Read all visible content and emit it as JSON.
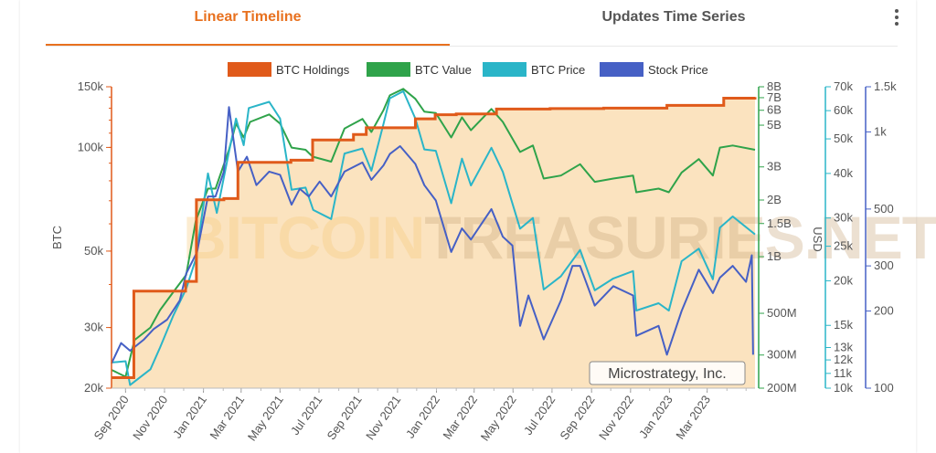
{
  "tabs": [
    {
      "label": "Linear Timeline",
      "active": true
    },
    {
      "label": "Updates Time Series",
      "active": false
    }
  ],
  "menu_icon": "more-vertical-icon",
  "watermark": {
    "part1": "BITCOIN",
    "part2": "TREASURIES.NET"
  },
  "company_label": "Microstrategy, Inc.",
  "colors": {
    "btc_holdings": "#e05a1a",
    "btc_value": "#2fa34a",
    "btc_price": "#2ab5c8",
    "stock_price": "#4660c5",
    "fill": "#fbe3bf",
    "tab_active": "#e8711f"
  },
  "chart_data": {
    "type": "line",
    "title": "",
    "legend_position": "top-center",
    "grid": false,
    "x_ticks": [
      "Sep 2020",
      "Nov 2020",
      "Jan 2021",
      "Mar 2021",
      "May 2021",
      "Jul 2021",
      "Sep 2021",
      "Nov 2021",
      "Jan 2022",
      "Mar 2022",
      "May 2022",
      "Jul 2022",
      "Sep 2022",
      "Nov 2022",
      "Jan 2023",
      "Mar 2023"
    ],
    "x_range": [
      "2020-08-10",
      "2023-05-15"
    ],
    "axes": {
      "btc": {
        "label": "BTC",
        "scale": "log",
        "range": [
          20000,
          150000
        ],
        "ticks": [
          {
            "v": 20000,
            "t": "20k"
          },
          {
            "v": 30000,
            "t": "30k"
          },
          {
            "v": 50000,
            "t": "50k"
          },
          {
            "v": 100000,
            "t": "100k"
          },
          {
            "v": 150000,
            "t": "150k"
          }
        ]
      },
      "value_usd": {
        "label": "USD",
        "scale": "log",
        "range": [
          200000000,
          8000000000
        ],
        "ticks": [
          {
            "v": 200000000,
            "t": "200M"
          },
          {
            "v": 300000000,
            "t": "300M"
          },
          {
            "v": 500000000,
            "t": "500M"
          },
          {
            "v": 1000000000,
            "t": "1B"
          },
          {
            "v": 1500000000,
            "t": "1.5B"
          },
          {
            "v": 2000000000,
            "t": "2B"
          },
          {
            "v": 3000000000,
            "t": "3B"
          },
          {
            "v": 5000000000,
            "t": "5B"
          },
          {
            "v": 6000000000,
            "t": "6B"
          },
          {
            "v": 7000000000,
            "t": "7B"
          },
          {
            "v": 8000000000,
            "t": "8B"
          }
        ]
      },
      "btc_price_usd": {
        "scale": "log",
        "range": [
          10000,
          70000
        ],
        "ticks": [
          {
            "v": 10000,
            "t": "10k"
          },
          {
            "v": 11000,
            "t": "11k"
          },
          {
            "v": 12000,
            "t": "12k"
          },
          {
            "v": 13000,
            "t": "13k"
          },
          {
            "v": 15000,
            "t": "15k"
          },
          {
            "v": 20000,
            "t": "20k"
          },
          {
            "v": 25000,
            "t": "25k"
          },
          {
            "v": 30000,
            "t": "30k"
          },
          {
            "v": 40000,
            "t": "40k"
          },
          {
            "v": 50000,
            "t": "50k"
          },
          {
            "v": 60000,
            "t": "60k"
          },
          {
            "v": 70000,
            "t": "70k"
          }
        ]
      },
      "stock_price_usd": {
        "scale": "log",
        "range": [
          100,
          1500
        ],
        "ticks": [
          {
            "v": 100,
            "t": "100"
          },
          {
            "v": 200,
            "t": "200"
          },
          {
            "v": 300,
            "t": "300"
          },
          {
            "v": 500,
            "t": "500"
          },
          {
            "v": 1000,
            "t": "1k"
          },
          {
            "v": 1500,
            "t": "1.5k"
          }
        ]
      }
    },
    "series": [
      {
        "name": "BTC Holdings",
        "axis": "btc",
        "step": true,
        "points": [
          [
            "2020-08-10",
            21454
          ],
          [
            "2020-09-14",
            38250
          ],
          [
            "2020-12-04",
            40824
          ],
          [
            "2020-12-21",
            70470
          ],
          [
            "2021-02-02",
            71079
          ],
          [
            "2021-02-24",
            90531
          ],
          [
            "2021-05-18",
            91850
          ],
          [
            "2021-06-21",
            105085
          ],
          [
            "2021-08-24",
            108992
          ],
          [
            "2021-09-13",
            114042
          ],
          [
            "2021-11-29",
            121044
          ],
          [
            "2021-12-30",
            124391
          ],
          [
            "2022-02-01",
            125051
          ],
          [
            "2022-04-05",
            129218
          ],
          [
            "2022-06-28",
            129699
          ],
          [
            "2022-09-20",
            130000
          ],
          [
            "2022-12-28",
            132500
          ],
          [
            "2023-03-27",
            138955
          ],
          [
            "2023-05-15",
            140000
          ]
        ]
      },
      {
        "name": "BTC Value",
        "axis": "value_usd",
        "points": [
          [
            "2020-08-10",
            250000000
          ],
          [
            "2020-09-01",
            230000000
          ],
          [
            "2020-09-15",
            360000000
          ],
          [
            "2020-10-10",
            420000000
          ],
          [
            "2020-10-25",
            520000000
          ],
          [
            "2020-11-15",
            650000000
          ],
          [
            "2020-12-05",
            800000000
          ],
          [
            "2020-12-20",
            1550000000
          ],
          [
            "2021-01-08",
            2300000000
          ],
          [
            "2021-01-20",
            2300000000
          ],
          [
            "2021-02-10",
            3700000000
          ],
          [
            "2021-02-21",
            5100000000
          ],
          [
            "2021-03-05",
            4300000000
          ],
          [
            "2021-03-15",
            5200000000
          ],
          [
            "2021-04-14",
            5700000000
          ],
          [
            "2021-05-01",
            5100000000
          ],
          [
            "2021-05-19",
            3800000000
          ],
          [
            "2021-06-10",
            3700000000
          ],
          [
            "2021-06-21",
            3400000000
          ],
          [
            "2021-07-20",
            3200000000
          ],
          [
            "2021-08-10",
            4800000000
          ],
          [
            "2021-09-07",
            5400000000
          ],
          [
            "2021-09-21",
            4600000000
          ],
          [
            "2021-10-10",
            6000000000
          ],
          [
            "2021-10-20",
            7200000000
          ],
          [
            "2021-11-10",
            7800000000
          ],
          [
            "2021-11-29",
            6900000000
          ],
          [
            "2021-12-13",
            5900000000
          ],
          [
            "2021-12-31",
            5800000000
          ],
          [
            "2022-01-24",
            4300000000
          ],
          [
            "2022-02-10",
            5500000000
          ],
          [
            "2022-02-24",
            4700000000
          ],
          [
            "2022-03-28",
            6100000000
          ],
          [
            "2022-04-15",
            5200000000
          ],
          [
            "2022-05-12",
            3600000000
          ],
          [
            "2022-06-01",
            3900000000
          ],
          [
            "2022-06-18",
            2600000000
          ],
          [
            "2022-07-15",
            2700000000
          ],
          [
            "2022-08-14",
            3100000000
          ],
          [
            "2022-09-06",
            2500000000
          ],
          [
            "2022-10-05",
            2600000000
          ],
          [
            "2022-11-05",
            2700000000
          ],
          [
            "2022-11-10",
            2200000000
          ],
          [
            "2022-12-15",
            2300000000
          ],
          [
            "2022-12-31",
            2200000000
          ],
          [
            "2023-01-20",
            2800000000
          ],
          [
            "2023-02-16",
            3300000000
          ],
          [
            "2023-03-10",
            2700000000
          ],
          [
            "2023-03-21",
            3800000000
          ],
          [
            "2023-04-10",
            3900000000
          ],
          [
            "2023-05-15",
            3700000000
          ]
        ]
      },
      {
        "name": "BTC Price",
        "axis": "btc_price_usd",
        "points": [
          [
            "2020-08-10",
            11800
          ],
          [
            "2020-09-01",
            11900
          ],
          [
            "2020-09-08",
            10200
          ],
          [
            "2020-10-10",
            11300
          ],
          [
            "2020-10-25",
            13000
          ],
          [
            "2020-11-15",
            16000
          ],
          [
            "2020-12-05",
            19000
          ],
          [
            "2020-12-20",
            23000
          ],
          [
            "2021-01-08",
            40000
          ],
          [
            "2021-01-22",
            31000
          ],
          [
            "2021-02-10",
            46000
          ],
          [
            "2021-02-21",
            57000
          ],
          [
            "2021-03-05",
            48000
          ],
          [
            "2021-03-13",
            61000
          ],
          [
            "2021-04-14",
            63500
          ],
          [
            "2021-05-01",
            57000
          ],
          [
            "2021-05-19",
            36000
          ],
          [
            "2021-06-10",
            36500
          ],
          [
            "2021-06-22",
            31600
          ],
          [
            "2021-07-20",
            29800
          ],
          [
            "2021-08-10",
            45500
          ],
          [
            "2021-09-07",
            47000
          ],
          [
            "2021-09-21",
            40700
          ],
          [
            "2021-10-10",
            55000
          ],
          [
            "2021-10-20",
            65000
          ],
          [
            "2021-11-10",
            68000
          ],
          [
            "2021-11-29",
            57000
          ],
          [
            "2021-12-13",
            46700
          ],
          [
            "2021-12-31",
            46300
          ],
          [
            "2022-01-24",
            33000
          ],
          [
            "2022-02-10",
            44000
          ],
          [
            "2022-02-24",
            37000
          ],
          [
            "2022-03-28",
            47200
          ],
          [
            "2022-04-15",
            40400
          ],
          [
            "2022-05-12",
            28000
          ],
          [
            "2022-06-01",
            30000
          ],
          [
            "2022-06-18",
            18900
          ],
          [
            "2022-07-15",
            20600
          ],
          [
            "2022-08-14",
            24400
          ],
          [
            "2022-09-06",
            18800
          ],
          [
            "2022-10-05",
            20300
          ],
          [
            "2022-11-05",
            21300
          ],
          [
            "2022-11-10",
            16500
          ],
          [
            "2022-12-15",
            17300
          ],
          [
            "2022-12-31",
            16500
          ],
          [
            "2023-01-20",
            22700
          ],
          [
            "2023-02-16",
            24600
          ],
          [
            "2023-03-10",
            20200
          ],
          [
            "2023-03-21",
            28200
          ],
          [
            "2023-04-10",
            30300
          ],
          [
            "2023-05-15",
            27000
          ]
        ]
      },
      {
        "name": "Stock Price",
        "axis": "stock_price_usd",
        "points": [
          [
            "2020-08-10",
            125
          ],
          [
            "2020-08-25",
            150
          ],
          [
            "2020-09-08",
            140
          ],
          [
            "2020-09-30",
            155
          ],
          [
            "2020-10-15",
            170
          ],
          [
            "2020-11-05",
            185
          ],
          [
            "2020-11-25",
            220
          ],
          [
            "2020-12-05",
            280
          ],
          [
            "2020-12-22",
            340
          ],
          [
            "2021-01-08",
            560
          ],
          [
            "2021-01-20",
            560
          ],
          [
            "2021-02-02",
            700
          ],
          [
            "2021-02-10",
            1250
          ],
          [
            "2021-02-24",
            700
          ],
          [
            "2021-03-10",
            800
          ],
          [
            "2021-03-25",
            620
          ],
          [
            "2021-04-14",
            700
          ],
          [
            "2021-05-01",
            680
          ],
          [
            "2021-05-19",
            520
          ],
          [
            "2021-06-01",
            600
          ],
          [
            "2021-06-15",
            560
          ],
          [
            "2021-07-02",
            640
          ],
          [
            "2021-07-20",
            560
          ],
          [
            "2021-08-10",
            700
          ],
          [
            "2021-09-07",
            760
          ],
          [
            "2021-09-21",
            650
          ],
          [
            "2021-10-10",
            740
          ],
          [
            "2021-10-20",
            820
          ],
          [
            "2021-11-05",
            880
          ],
          [
            "2021-11-29",
            750
          ],
          [
            "2021-12-13",
            620
          ],
          [
            "2021-12-31",
            540
          ],
          [
            "2022-01-24",
            340
          ],
          [
            "2022-02-10",
            420
          ],
          [
            "2022-02-24",
            380
          ],
          [
            "2022-03-28",
            500
          ],
          [
            "2022-04-15",
            390
          ],
          [
            "2022-04-30",
            360
          ],
          [
            "2022-05-12",
            175
          ],
          [
            "2022-05-25",
            230
          ],
          [
            "2022-06-18",
            155
          ],
          [
            "2022-07-15",
            220
          ],
          [
            "2022-08-02",
            300
          ],
          [
            "2022-08-14",
            300
          ],
          [
            "2022-09-06",
            210
          ],
          [
            "2022-10-05",
            250
          ],
          [
            "2022-11-05",
            230
          ],
          [
            "2022-11-10",
            160
          ],
          [
            "2022-12-15",
            175
          ],
          [
            "2022-12-28",
            135
          ],
          [
            "2023-01-20",
            200
          ],
          [
            "2023-02-16",
            290
          ],
          [
            "2023-03-10",
            235
          ],
          [
            "2023-03-21",
            270
          ],
          [
            "2023-04-10",
            300
          ],
          [
            "2023-05-01",
            260
          ],
          [
            "2023-05-10",
            330
          ],
          [
            "2023-05-12",
            135
          ]
        ]
      }
    ]
  }
}
